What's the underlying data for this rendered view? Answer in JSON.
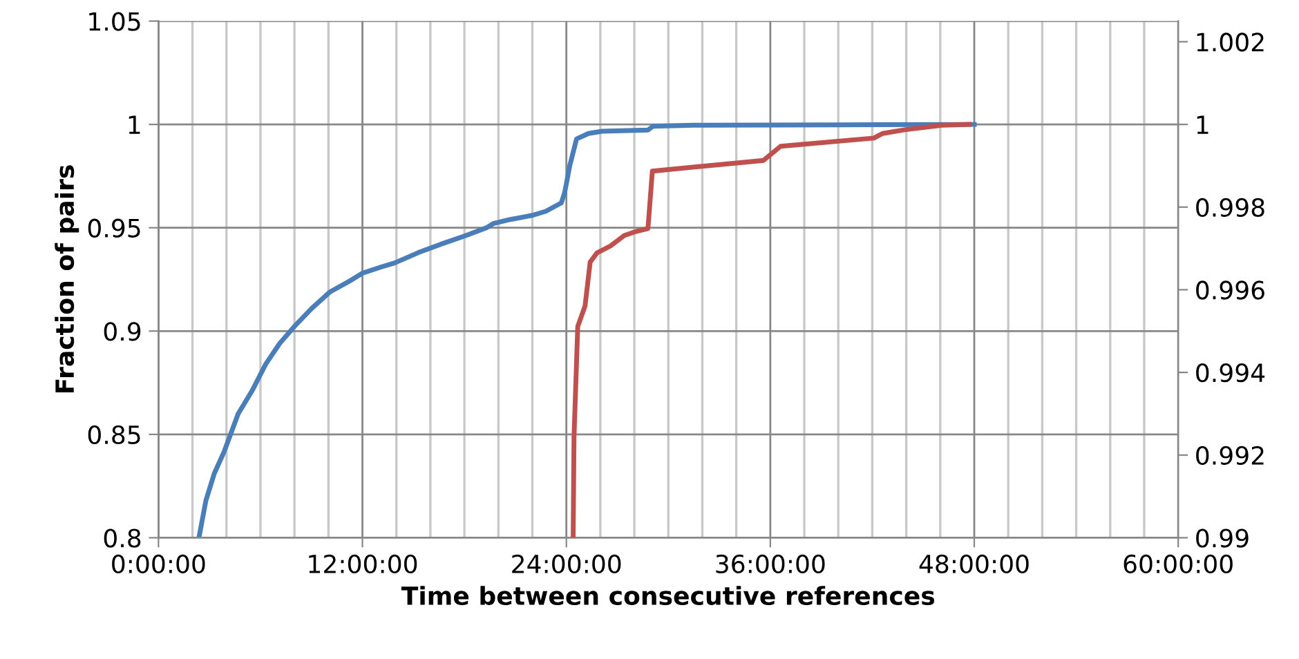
{
  "chart_data": {
    "type": "line",
    "xlabel": "Time between consecutive references",
    "ylabel": "Fraction of pairs",
    "xlim": [
      0,
      60
    ],
    "xticks": [
      {
        "value": 0,
        "label": "0:00:00"
      },
      {
        "value": 2,
        "label": null
      },
      {
        "value": 4,
        "label": null
      },
      {
        "value": 6,
        "label": null
      },
      {
        "value": 8,
        "label": null
      },
      {
        "value": 10,
        "label": null
      },
      {
        "value": 12,
        "label": "12:00:00"
      },
      {
        "value": 14,
        "label": null
      },
      {
        "value": 16,
        "label": null
      },
      {
        "value": 18,
        "label": null
      },
      {
        "value": 20,
        "label": null
      },
      {
        "value": 22,
        "label": null
      },
      {
        "value": 24,
        "label": "24:00:00"
      },
      {
        "value": 26,
        "label": null
      },
      {
        "value": 28,
        "label": null
      },
      {
        "value": 30,
        "label": null
      },
      {
        "value": 32,
        "label": null
      },
      {
        "value": 34,
        "label": null
      },
      {
        "value": 36,
        "label": "36:00:00"
      },
      {
        "value": 38,
        "label": null
      },
      {
        "value": 40,
        "label": null
      },
      {
        "value": 42,
        "label": null
      },
      {
        "value": 44,
        "label": null
      },
      {
        "value": 46,
        "label": null
      },
      {
        "value": 48,
        "label": "48:00:00"
      },
      {
        "value": 50,
        "label": null
      },
      {
        "value": 52,
        "label": null
      },
      {
        "value": 54,
        "label": null
      },
      {
        "value": 56,
        "label": null
      },
      {
        "value": 58,
        "label": null
      },
      {
        "value": 60,
        "label": "60:00:00"
      }
    ],
    "ylim": [
      0.8,
      1.05
    ],
    "yticks": [
      0.8,
      0.85,
      0.9,
      0.95,
      1,
      1.05
    ],
    "y2lim": [
      0.99,
      1.0025
    ],
    "y2ticks": [
      0.99,
      0.992,
      0.994,
      0.996,
      0.998,
      1,
      1.002
    ],
    "grid": true,
    "legend": false,
    "marker": "none",
    "line_style": "solid",
    "series": [
      {
        "color": "#4a7ebb",
        "x": [
          2.38,
          2.79,
          3.28,
          3.88,
          4.69,
          5.5,
          6.31,
          7.13,
          8.08,
          9.02,
          10.1,
          11.2,
          12.0,
          13.1,
          13.9,
          15.3,
          16.6,
          18.0,
          19.3,
          19.7,
          20.7,
          22.0,
          22.8,
          23.7,
          23.9,
          24.2,
          24.6,
          25.3,
          26.1,
          28.8,
          29.1,
          31.5,
          40,
          48
        ],
        "values": [
          0.8,
          0.818,
          0.831,
          0.842,
          0.86,
          0.871,
          0.884,
          0.894,
          0.903,
          0.911,
          0.919,
          0.924,
          0.928,
          0.931,
          0.933,
          0.938,
          0.942,
          0.946,
          0.95,
          0.952,
          0.954,
          0.956,
          0.958,
          0.962,
          0.967,
          0.98,
          0.993,
          0.9956,
          0.9967,
          0.9973,
          0.9991,
          0.9996,
          0.9998,
          1.0
        ]
      },
      {
        "color": "#c0504d",
        "axis": "y2",
        "x": [
          24.4,
          24.45,
          24.67,
          25.1,
          25.4,
          25.8,
          26.6,
          27.4,
          28.1,
          28.8,
          29.06,
          35.6,
          36.6,
          42.1,
          42.6,
          43.9,
          46.1,
          47.7
        ],
        "values": [
          0.99,
          0.99244,
          0.99511,
          0.99561,
          0.99667,
          0.99689,
          0.99706,
          0.99731,
          0.99741,
          0.99748,
          0.99887,
          0.99913,
          0.99947,
          0.99967,
          0.99978,
          0.99987,
          0.99998,
          1.0
        ]
      }
    ]
  }
}
